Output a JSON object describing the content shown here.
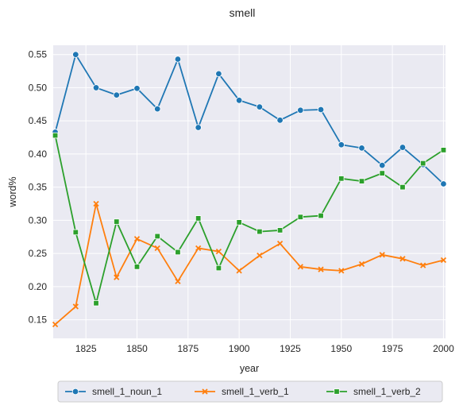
{
  "chart_data": {
    "type": "line",
    "title": "smell",
    "xlabel": "year",
    "ylabel": "word%",
    "xlim": [
      1809,
      2001
    ],
    "ylim": [
      0.122,
      0.564
    ],
    "xticks": [
      1825,
      1850,
      1875,
      1900,
      1925,
      1950,
      1975,
      2000
    ],
    "xtick_labels": [
      "1825",
      "1850",
      "1875",
      "1900",
      "1925",
      "1950",
      "1975",
      "2000"
    ],
    "yticks": [
      0.15,
      0.2,
      0.25,
      0.3,
      0.35,
      0.4,
      0.45,
      0.5,
      0.55
    ],
    "ytick_labels": [
      "0.15",
      "0.20",
      "0.25",
      "0.30",
      "0.35",
      "0.40",
      "0.45",
      "0.50",
      "0.55"
    ],
    "grid": true,
    "legend_position": "bottom-center",
    "x": [
      1810,
      1820,
      1830,
      1840,
      1850,
      1860,
      1870,
      1880,
      1890,
      1900,
      1910,
      1920,
      1930,
      1940,
      1950,
      1960,
      1970,
      1980,
      1990,
      2000
    ],
    "series": [
      {
        "name": "smell_1_noun_1",
        "color": "#1f77b4",
        "marker": "circle",
        "values": [
          0.433,
          0.55,
          0.5,
          0.489,
          0.499,
          0.468,
          0.543,
          0.44,
          0.521,
          0.481,
          0.471,
          0.451,
          0.466,
          0.467,
          0.414,
          0.409,
          0.383,
          0.41,
          0.384,
          0.355
        ]
      },
      {
        "name": "smell_1_verb_1",
        "color": "#ff7f0e",
        "marker": "x",
        "values": [
          0.143,
          0.17,
          0.325,
          0.214,
          0.272,
          0.258,
          0.208,
          0.258,
          0.253,
          0.224,
          0.247,
          0.265,
          0.23,
          0.226,
          0.224,
          0.234,
          0.248,
          0.242,
          0.232,
          0.24
        ]
      },
      {
        "name": "smell_1_verb_2",
        "color": "#2ca02c",
        "marker": "square",
        "values": [
          0.428,
          0.282,
          0.175,
          0.298,
          0.23,
          0.276,
          0.252,
          0.303,
          0.228,
          0.297,
          0.283,
          0.285,
          0.305,
          0.307,
          0.363,
          0.359,
          0.371,
          0.35,
          0.386,
          0.406
        ]
      }
    ]
  }
}
